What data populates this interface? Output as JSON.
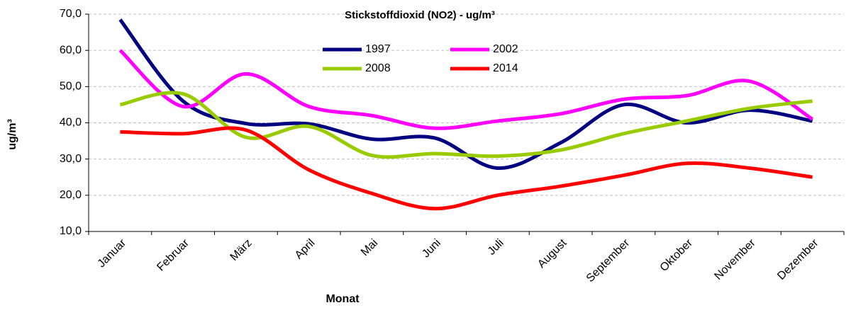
{
  "chart_data": {
    "type": "line",
    "title": "Stickstoffdioxid (NO2) - ug/m³",
    "x_label": "Monat",
    "y_label": "ug/m³",
    "categories": [
      "Januar",
      "Februar",
      "März",
      "April",
      "Mai",
      "Juni",
      "Juli",
      "August",
      "September",
      "Oktober",
      "November",
      "Dezember"
    ],
    "series": [
      {
        "name": "1997",
        "color": "#000080",
        "values": [
          68.5,
          46,
          39.8,
          39.7,
          35.5,
          35.8,
          27.5,
          34.5,
          45,
          40,
          43.5,
          40.5
        ]
      },
      {
        "name": "2002",
        "color": "#ff00ff",
        "values": [
          60,
          44.5,
          53.5,
          44.5,
          42,
          38.5,
          40.5,
          42.5,
          46.5,
          47.5,
          51.5,
          41
        ]
      },
      {
        "name": "2008",
        "color": "#99cc00",
        "values": [
          45,
          48,
          36,
          39,
          31,
          31.5,
          30.8,
          32.5,
          37,
          40.5,
          44,
          46
        ]
      },
      {
        "name": "2014",
        "color": "#ff0000",
        "values": [
          37.5,
          37,
          38,
          27,
          20.5,
          16.3,
          20,
          22.5,
          25.5,
          28.8,
          27.5,
          25
        ]
      }
    ],
    "ylim": [
      10,
      70
    ],
    "yticks": [
      {
        "value": 10,
        "label": "10,0"
      },
      {
        "value": 20,
        "label": "20,0"
      },
      {
        "value": 30,
        "label": "30,0"
      },
      {
        "value": 40,
        "label": "40,0"
      },
      {
        "value": 50,
        "label": "50,0"
      },
      {
        "value": 60,
        "label": "60,0"
      },
      {
        "value": 70,
        "label": "70,0"
      }
    ],
    "grid": true
  }
}
